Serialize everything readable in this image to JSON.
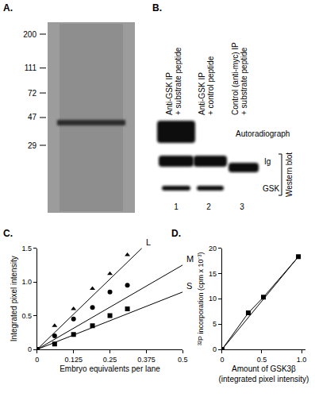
{
  "panel_labels": {
    "a": "A.",
    "b": "B.",
    "c": "C.",
    "d": "D."
  },
  "gel": {
    "markers": [
      200,
      111,
      72,
      47,
      29
    ]
  },
  "blot": {
    "lanes": [
      {
        "label": [
          "Anti-GSK IP",
          "+ substrate peptide"
        ],
        "number": 1
      },
      {
        "label": [
          "Anti-GSK IP",
          "+ control peptide"
        ],
        "number": 2
      },
      {
        "label": [
          "Control (anti-myc) IP",
          "+ substrate peptide"
        ],
        "number": 3
      }
    ],
    "autoradiograph": "Autoradiograph",
    "bands": [
      "Ig",
      "GSK"
    ],
    "western_blot": "Western blot"
  },
  "chart_data": [
    {
      "type": "scatter",
      "x_label": "Embryo equivalents per lane",
      "y_label": "Integrated pixel intensity",
      "xlim": [
        0,
        0.5
      ],
      "xticks": [
        0,
        0.125,
        0.25,
        0.375,
        0.5
      ],
      "ylim": [
        0,
        1.5
      ],
      "yticks": [
        0,
        0.5,
        {
          "value": 1,
          "label": "1.0"
        },
        1.5
      ],
      "grid": false,
      "series": [
        {
          "name": "L",
          "color": "#000000",
          "marker": "triangle",
          "x": [
            0,
            0.06,
            0.125,
            0.19,
            0.25,
            0.31
          ],
          "values": [
            0,
            0.35,
            0.6,
            0.9,
            1.12,
            1.4
          ],
          "fit": {
            "x": [
              0,
              0.36
            ],
            "values": [
              0,
              1.5
            ]
          }
        },
        {
          "name": "M",
          "color": "#000000",
          "marker": "circle",
          "x": [
            0,
            0.06,
            0.125,
            0.19,
            0.25,
            0.31
          ],
          "values": [
            0,
            0.2,
            0.45,
            0.62,
            0.85,
            0.95
          ],
          "fit": {
            "x": [
              0,
              0.5
            ],
            "values": [
              0,
              1.25
            ]
          }
        },
        {
          "name": "S",
          "color": "#000000",
          "marker": "square",
          "x": [
            0,
            0.06,
            0.125,
            0.19,
            0.25,
            0.31
          ],
          "values": [
            0,
            0.08,
            0.22,
            0.35,
            0.5,
            0.6
          ],
          "fit": {
            "x": [
              0,
              0.5
            ],
            "values": [
              0,
              0.85
            ]
          }
        }
      ]
    },
    {
      "type": "scatter",
      "x_label": [
        "Amount of GSK3β",
        "(integrated pixel intensity)"
      ],
      "y_label": "³²P incorporation (cpm x 10⁻³)",
      "xlim": [
        0,
        1.05
      ],
      "xticks": [
        0,
        0.5,
        {
          "value": 1,
          "label": "1.0"
        }
      ],
      "ylim": [
        0,
        20
      ],
      "yticks": [
        0,
        5,
        10,
        15,
        20
      ],
      "grid": false,
      "series": [
        {
          "color": "#000000",
          "marker": "square",
          "line_style": "solid",
          "x": [
            0,
            0.33,
            0.52,
            0.96
          ],
          "values": [
            0,
            7.2,
            10.3,
            18.3
          ],
          "fit": {
            "x": [
              0,
              0.97
            ],
            "values": [
              0,
              18.5
            ]
          }
        }
      ]
    }
  ]
}
